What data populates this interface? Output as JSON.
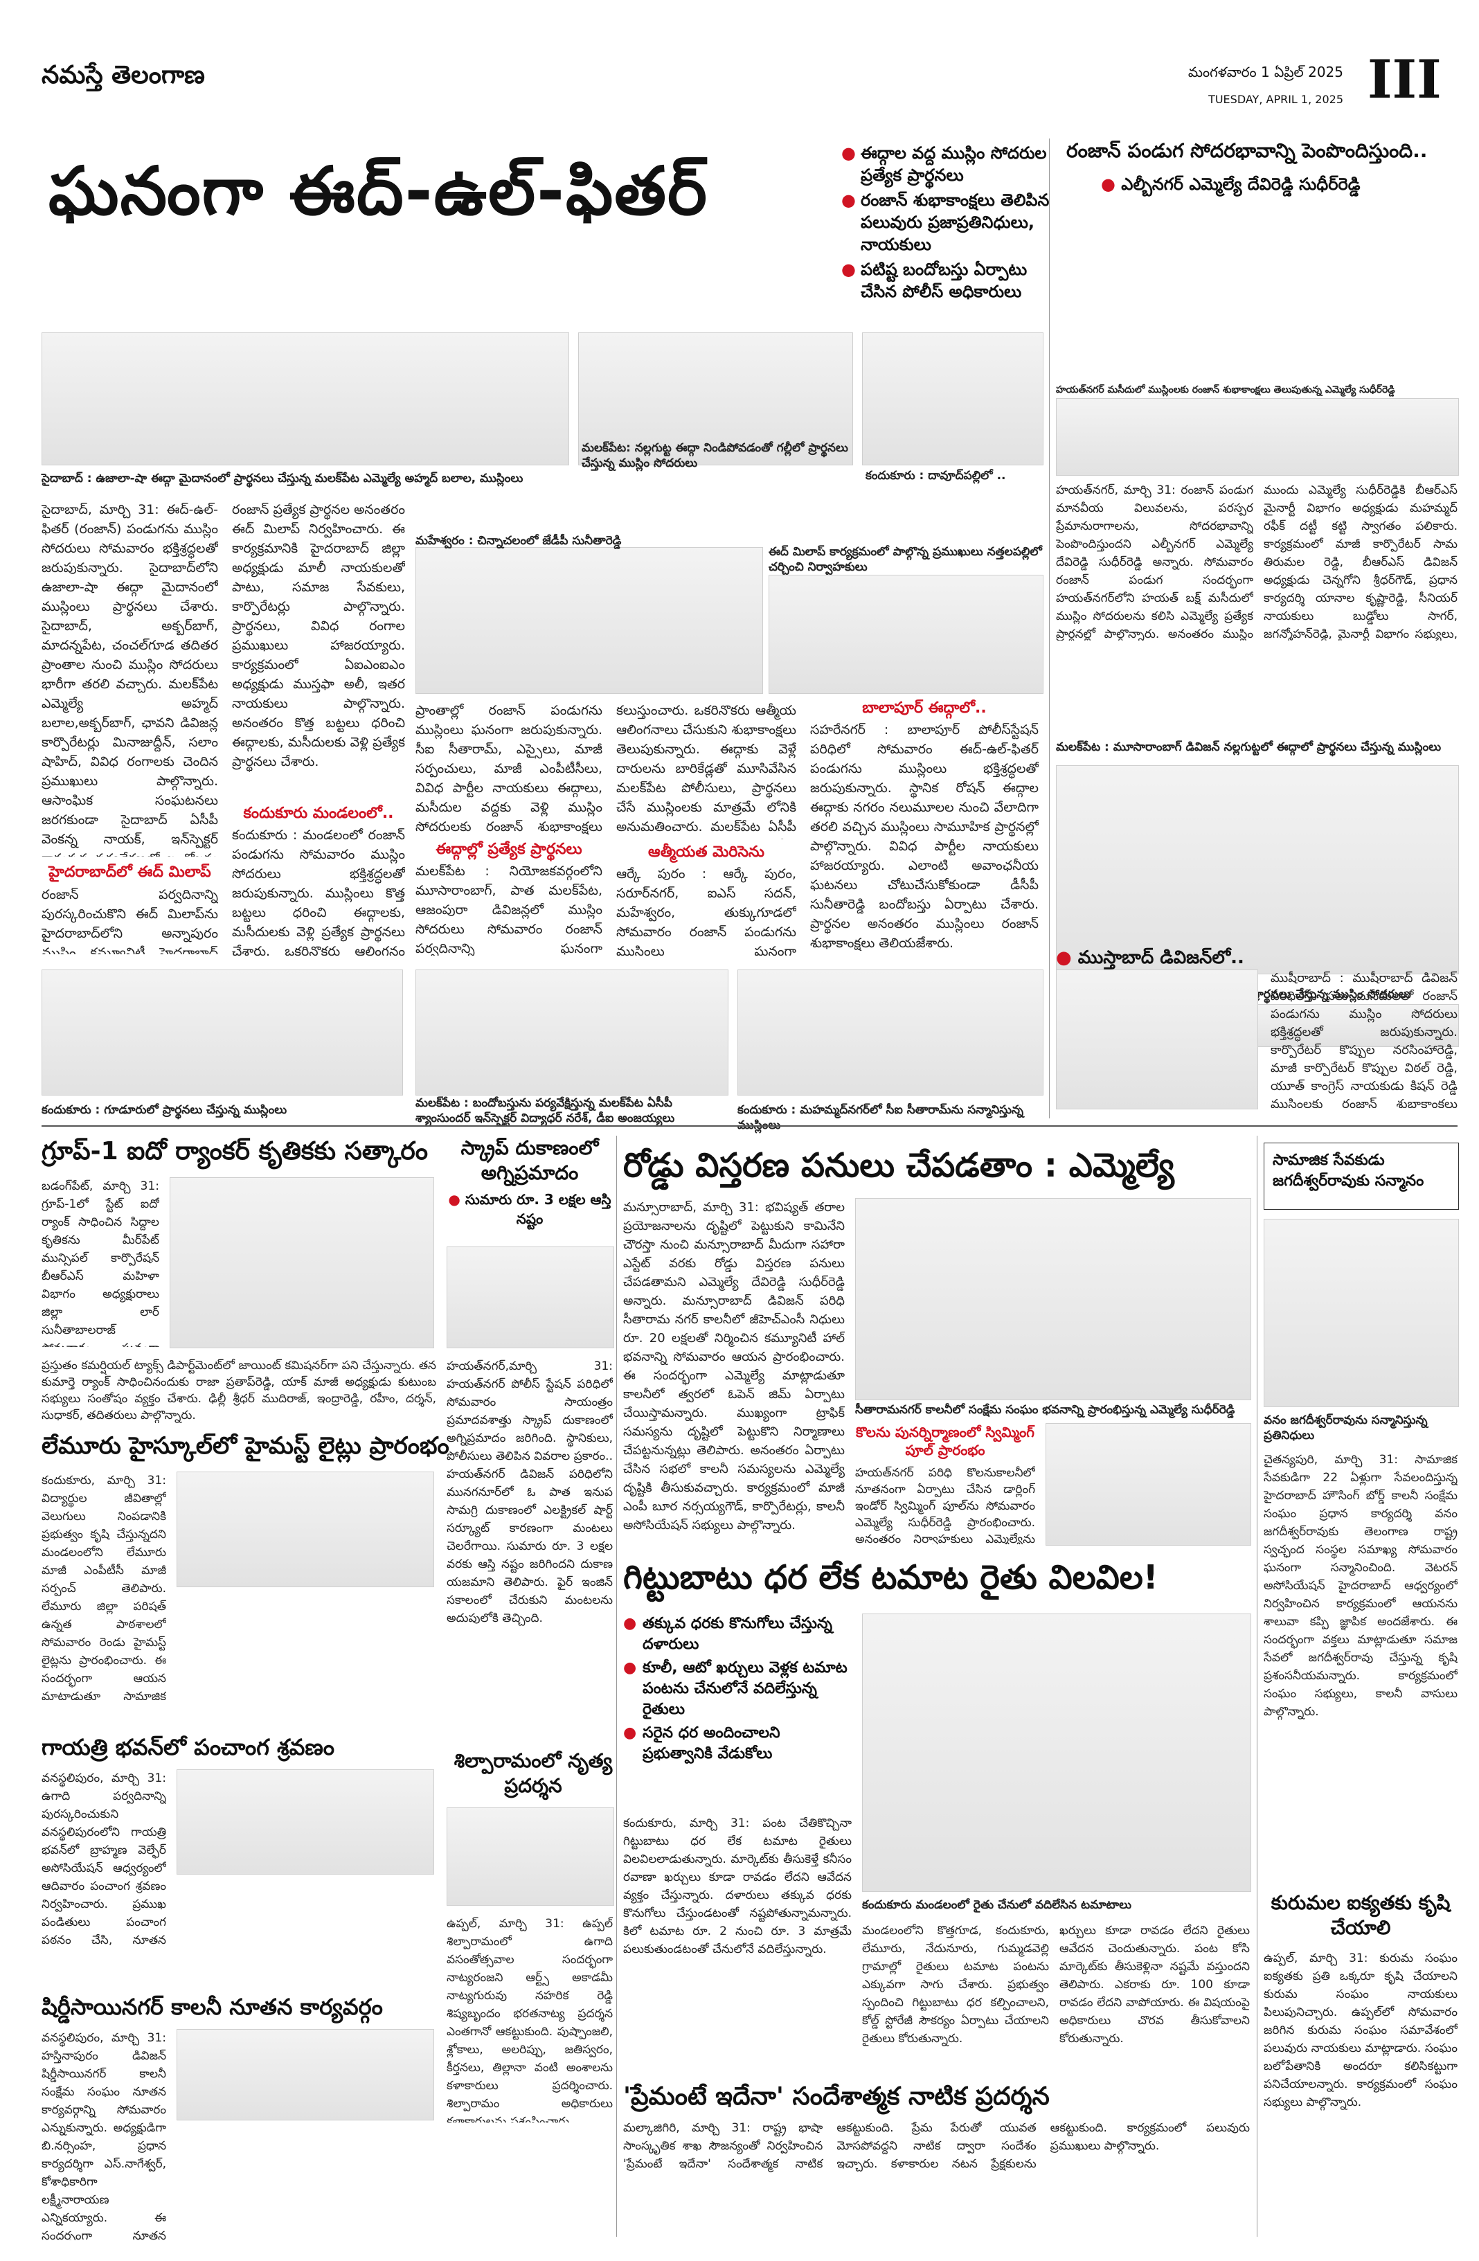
{
  "masthead": {
    "brand": "నమస్తే తెలంగాణ",
    "date_te": "మంగళవారం 1 ఏప్రిల్ 2025",
    "date_en": "TUESDAY, APRIL 1, 2025",
    "page": "III"
  },
  "lead": {
    "title": "ఘనంగా ఈద్-ఉల్-ఫితర్",
    "bullets": [
      "ఈద్గాల వద్ద ముస్లిం సోదరుల ప్రత్యేక ప్రార్థనలు",
      "రంజాన్ శుభాకాంక్షలు తెలిపిన పలువురు ప్రజాప్రతినిధులు, నాయకులు",
      "పటిష్ట బందోబస్తు ఏర్పాటు చేసిన పోలీస్ అధికారులు"
    ]
  },
  "side_story": {
    "title": "రంజాన్ పండుగ సోదరభావాన్ని పెంపొందిస్తుంది..",
    "byline": "ఎల్బీనగర్ ఎమ్మెల్యే దేవిరెడ్డి సుధీర్‌రెడ్డి",
    "photo_caption": "హయత్‌నగర్ మసీదులో ముస్లింలకు రంజాన్ శుభాకాంక్షలు తెలుపుతున్న ఎమ్మెల్యే సుధీర్‌రెడ్డి",
    "body_left": "హయత్‌నగర్, మార్చి 31: రంజాన్ పండుగ మానవీయ విలువలను, పరస్పర ప్రేమానురాగాలను, సోదరభావాన్ని పెంపొందిస్తుందని ఎల్బీనగర్ ఎమ్మెల్యే దేవిరెడ్డి సుధీర్‌రెడ్డి అన్నారు. సోమవారం రంజాన్ పండుగ సందర్భంగా హయత్‌నగర్‌లోని హయత్ బక్ష్ మసీదులో ముస్లిం సోదరులను కలిసి ఎమ్మెల్యే ప్రత్యేక ప్రార్థనల్లో పాల్గొన్నారు. అనంతరం ముస్లిం సోదరులకు రంజాన్ శుభాకాంక్షలు తెలిపారు. అంతకు",
    "body_right": "ముందు ఎమ్మెల్యే సుధీర్‌రెడ్డికి బీఆర్ఎస్ మైనార్టీ విభాగం అధ్యక్షుడు మహమ్మద్ రఫీక్ దట్టీ కట్టి స్వాగతం పలికారు. కార్యక్రమంలో మాజీ కార్పొరేటర్ సామ తిరుమల రెడ్డి, బీఆర్ఎస్ డివిజన్ అధ్యక్షుడు చెన్నగోని శ్రీధర్‌గౌడ్, ప్రధాన కార్యదర్శి యానాల కృష్ణారెడ్డి, సీనియర్ నాయకులు బుడ్డోలు సాగర్, జగన్మోహన్‌రెడ్డి, మైనార్టీ విభాగం సభ్యులు, మహమ్మద్ సలీం, ఇస్మాయిల్, జాబర్, తదితరులు పాల్గొన్నారు."
  },
  "captions": {
    "c1": "సైదాబాద్ : ఉజాలా-షా ఈద్గా మైదానంలో ప్రార్థనలు చేస్తున్న మలక్‌పేట ఎమ్మెల్యే అహ్మద్ బలాల, ముస్లింలు",
    "c2": "మలక్‌పేట: నల్లగుట్ట ఈద్గా నిండిపోవడంతో గల్లీలో ప్రార్థనలు చేస్తున్న ముస్లిం సోదరులు",
    "c3": "కందుకూరు : దావూద్‌పల్లిలో ..",
    "c4": "మహేశ్వరం : చిన్నాచలంలో జేడీపీ సునీతారెడ్డి",
    "c5": "ఈద్ మిలాప్ కార్యక్రమంలో పాల్గొన్న ప్రముఖులు నత్తలపల్లిలో చర్చించి నిర్వాహకులు",
    "c6": "మలక్‌పేట : మూసారాంబాగ్ డివిజన్ నల్లగుట్టలో ఈద్గాలో ప్రార్థనలు చేస్తున్న ముస్లింలు",
    "c7": "బాలాపూర్ : సహరేనగర్ ఈద్గా వద్ద ప్రత్యేక ప్రార్థనలు చేస్తున్న ముస్లిం సోదరులు",
    "c8": "కందుకూరు : గూడూరులో ప్రార్థనలు చేస్తున్న ముస్లింలు",
    "c9": "మలక్‌పేట : బందోబస్తును పర్యవేక్షిస్తున్న మలక్‌పేట ఏసీపీ శ్యాంసుందర్ ఇన్‌స్పెక్టర్ విద్యాధర్ నరేశ్, డీఐ అంజయ్యలు",
    "c10": "కందుకూరు : మహమ్మద్‌నగర్‌లో సీఐ సీతారామ్‌ను సన్మానిస్తున్న ముస్లింలు"
  },
  "col1": "సైదాబాద్, మార్చి 31: ఈద్-ఉల్-ఫితర్ (రంజాన్) పండుగను ముస్లిం సోదరులు సోమవారం భక్తిశ్రద్ధలతో జరుపుకున్నారు. సైదాబాద్‌లోని ఉజాలా-షా ఈద్గా మైదానంలో ముస్లింలు ప్రార్థనలు చేశారు. సైదాబాద్, అక్బర్‌బాగ్, మాదన్నపేట, చంచల్‌గూడ తదితర ప్రాంతాల నుంచి ముస్లిం సోదరులు భారీగా తరలి వచ్చారు. మలక్‌పేట ఎమ్మెల్యే అహ్మద్ బలాల,అక్బర్‌బాగ్, ఛావని డివిజన్ల కార్పొరేటర్లు మినాజుద్దీన్, సలాం షాహిద్, వివిధ రంగాలకు చెందిన ప్రముఖులు పాల్గొన్నారు. ఆసాంఘిక సంఘటనలు జరగకుండా సైదాబాద్ ఏసీపీ వెంకన్న నాయక్, ఇన్‌స్పెక్టర్ రామకృష్ణ పర్యవేక్షణలో బందోబస్తు ఏర్పాటు చేశారు. సౌత్ ఈస్ట్ జోన్ డీసీపీ కాంతిలాల్ సుభాష్ పరిశీలించారు. ప్రార్థనల అనంతరం ముస్లిం సోదరులు పరస్పరం ఈద్ ముబారక్ చెప్పుకున్నారు. మలక్‌పేట ఎమ్మెల్యే అహ్మద్ బలాలకు పోలీసు అధికారులతో పాటు, స్థానికులు రంజాన్ శుభాకాంక్షలు తెలిపారు.",
  "col1_sub": "హైదరాబాద్‌లో ఈద్ మిలాప్",
  "col1b": "రంజాన్ పర్వదినాన్ని పురస్కరించుకొని ఈద్ మిలాప్‌ను హైదరాబాద్‌లోని అన్నాపురం ముస్లిం కమ్యూనిటీ హైదరాబాద్ చార్జ్‌లో సోమవారం ఘనంగా నిర్వహించారు.",
  "col2": "రంజాన్ ప్రత్యేక ప్రార్థనల అనంతరం ఈద్ మిలాప్ నిర్వహించారు. ఈ కార్యక్రమానికి హైదరాబాద్ జిల్లా అధ్యక్షుడు మాలీ నాయకులతో పాటు, సమాజ సేవకులు, కార్పొరేటర్లు పాల్గొన్నారు. ప్రార్థనలు, వివిధ రంగాల ప్రముఖులు హాజరయ్యారు. కార్యక్రమంలో ఏఐఎంఐఎం అధ్యక్షుడు ముస్తఫా అలీ, ఇతర నాయకులు పాల్గొన్నారు. అనంతరం కొత్త బట్టలు ధరించి ఈద్గాలకు, మసీదులకు వెళ్లి ప్రత్యేక ప్రార్థనలు చేశారు.",
  "col2_sub": "కందుకూరు మండలంలో..",
  "col2b": "కందుకూరు : మండలంలో రంజాన్ పండుగను సోమవారం ముస్లిం సోదరులు భక్తిశ్రద్ధలతో జరుపుకున్నారు. ముస్లింలు కొత్త బట్టలు ధరించి ఈద్గాలకు, మసీదులకు వెళ్లి ప్రత్యేక ప్రార్థనలు చేశారు. ఒకరినొకరు ఆలింగనం చేసుకొని రంజాన్ శుభాకాంక్షలు తెలుపుకున్నారు. కందుకూరు, కొత్తగూడ మహమ్మద్‌నగర్, మల్కాపూర్, నేదునూరు, బాచుపల్లి, లేమూరు, ప్రగతినగర్, బేగంపేట్, ఆగిరేయంలో ప్రార్థనలు చేశారు.",
  "col3": "ప్రాంతాల్లో రంజాన్ పండుగను ముస్లింలు ఘనంగా జరుపుకున్నారు. సీఐ సీతారామ్, ఎస్సైలు, మాజీ సర్పంచులు, మాజీ ఎంపీటీసీలు, వివిధ పార్టీల నాయకులు ఈద్గాలు, మసీదుల వద్దకు వెళ్లి ముస్లిం సోదరులకు రంజాన్ శుభాకాంక్షలు తెలిపారు.",
  "col3_sub": "ఈద్గాల్లో ప్రత్యేక ప్రార్థనలు",
  "col3b": "మలక్‌పేట : నియోజకవర్గంలోని మూసారాంబాగ్, పాత మలక్‌పేట, ఆజంపురా డివిజన్లలో ముస్లిం సోదరులు సోమవారం రంజాన్ పర్వదినాన్ని ఘనంగా జరుపుకున్నారు. నల్లగుట్ట ఈద్గా వద్ద వేలాదిమంది ముస్లింలు ప్రత్యేక ప్రార్థనలు చేశారు. ఈద్గా నిండిపోవడంతో రోడ్లపైనే ప్రార్థనలు చేశారు. అనంతరం పరస్పరం ఆలింగనం చేసుకుని శుభాకాంక్షలు తెలుపుకున్నారు.",
  "col4": "కలుస్తుంచారు. ఒకరినొకరు ఆత్మీయ ఆలింగనాలు చేసుకుని శుభాకాంక్షలు తెలుపుకున్నారు. ఈద్గాకు వెళ్లే దారులను బారికేడ్లతో మూసివేసిన మలక్‌పేట పోలీసులు, ప్రార్థనలు చేసే ముస్లింలకు మాత్రమే లోనికి అనుమతించారు. మలక్‌పేట ఏసీపీ శ్యాంసుందర్, ఇన్‌స్పెక్టర్ నరేశ్, డీఐ అంజయ్యలు బందోబస్తును పర్యవేక్షించారు.",
  "col4_sub": "ఆత్మీయత మెరిసెను",
  "col4b": "ఆర్కే పురం : ఆర్కే పురం, సరూర్‌నగర్, ఐఎస్ సదన్, మహేశ్వరం, తుక్కుగూడలో సోమవారం రంజాన్ పండుగను ముస్లింలు ఘనంగా జరుపుకున్నారు. చిన్నాపెద్దా తేడా లేకుండా మసీదులు, ఈద్గాల వద్ద ప్రత్యేక ప్రార్థనలు నిర్వహించి ఒకరికొకరు రంజాన్ శుభాకాంక్షలు తెలుపుకున్నారు.",
  "col5_sub": "బాలాపూర్ ఈద్గాలో..",
  "col5": "సహరేనగర్ : బాలాపూర్ పోలీస్‌స్టేషన్ పరిధిలో సోమవారం ఈద్-ఉల్-ఫితర్ పండుగను ముస్లింలు భక్తిశ్రద్ధలతో జరుపుకున్నారు. స్థానిక రోషన్ ఈద్గాల ఈద్గాకు నగరం నలుమూలల నుంచి వేలాదిగా తరలి వచ్చిన ముస్లింలు సామూహిక ప్రార్థనల్లో పాల్గొన్నారు. వివిధ పార్టీల నాయకులు హాజరయ్యారు. ఎలాంటి అవాంఛనీయ ఘటనలు చోటుచేసుకోకుండా డీసీపీ సునీతారెడ్డి బందోబస్తు ఏర్పాటు చేశారు. ప్రార్థనల అనంతరం ముస్లింలు రంజాన్ శుభాకాంక్షలు తెలియజేశారు.",
  "col6_sub": "ముస్తాబాద్ డివిజన్‌లో..",
  "col6": "ముషీరాబాద్ : ముషీరాబాద్ డివిజన్ పరిధిలోని పలు మసీదులలో రంజాన్ పండుగను ముస్లిం సోదరులు భక్తిశ్రద్ధలతో జరుపుకున్నారు. కార్పొరేటర్ కొప్పుల నరసింహారెడ్డి, మాజీ కార్పొరేటర్ కొప్పుల విఠల్ రెడ్డి, యూత్ కాంగ్రెస్ నాయకుడు కిషన్ రెడ్డి ముస్లింలకు రంజాన్ శుభాకాంక్షలు తెలిపారు.",
  "stories": {
    "group1": {
      "title": "గ్రూప్-1 ఐదో ర్యాంకర్ కృతికకు సత్కారం",
      "body": "బడంగ్‌పేట్, మార్చి 31: గ్రూప్-1లో స్టేట్ ఐదో ర్యాంక్ సాధించిన సిద్దాల కృతికను మీర్‌పేట్ మున్సిపల్ కార్పొరేషన్ బీఆర్ఎస్ మహిళా విభాగం అధ్యక్షురాలు జిల్లా లార్ సునీతాబాలరాజ్ సోమవారం ఘనంగా సత్కరించారు. జిల్లెలగూడలోని నివాసానికి వెళ్లి కృతికను పుష్పగుచ్ఛం అందజేసి అభినందించారు. కాగా కృతిక బీఆర్ఎస్ మీర్‌పేట్ డివిజన్ అధ్యక్షురాలిగా, సరూర్‌నగర్ మండలం నుంచి పలుమార్లు ఎన్నికై ప్రజా సేవ చేస్తున్నారు. ఈ సందర్భంగా సునీతా బాలరాజ్ మాట్లాడుతూ కృతిక విజయం ప్రతి ఒక్కరికీ స్ఫూర్తిదాయకం అన్నారు."
    },
    "fire": {
      "title": "స్క్రాప్ దుకాణంలో అగ్నిప్రమాదం",
      "bullet": "సుమారు రూ. 3 లక్షల ఆస్తి నష్టం",
      "body": "హయత్‌నగర్,మార్చి 31: హయత్‌నగర్ పోలీస్ స్టేషన్ పరిధిలో సోమవారం సాయంత్రం ప్రమాదవశాత్తు స్క్రాప్ దుకాణంలో అగ్నిప్రమాదం జరిగింది. స్థానికులు, పోలీసులు తెలిపిన వివరాల ప్రకారం.. హయత్‌నగర్ డివిజన్ పరిధిలోని మునగనూర్‌లో ఓ పాత ఇనుప సామగ్రి దుకాణంలో ఎలక్ట్రికల్ షార్ట్ సర్క్యూట్ కారణంగా మంటలు చెలరేగాయి. సుమారు రూ. 3 లక్షల వరకు ఆస్తి నష్టం జరిగిందని దుకాణ యజమాని తెలిపారు. ఫైర్ ఇంజిన్ సకాలంలో చేరుకుని మంటలను అదుపులోకి తెచ్చింది."
    },
    "road": {
      "title": "రోడ్డు విస్తరణ పనులు చేపడతాం : ఎమ్మెల్యే",
      "body": "మన్సూరాబాద్, మార్చి 31: భవిష్యత్ తరాల ప్రయోజనాలను దృష్టిలో పెట్టుకుని కామినేని చౌరస్తా నుంచి మన్సూరాబాద్ మీదుగా సహారా ఎస్టేట్ వరకు రోడ్డు విస్తరణ పనులు చేపడతామని ఎమ్మెల్యే దేవిరెడ్డి సుధీర్‌రెడ్డి అన్నారు. మన్సూరాబాద్ డివిజన్ పరిధి సీతారామ నగర్ కాలనీలో జీహెచ్ఎంసీ నిధులు రూ. 20 లక్షలతో నిర్మించిన కమ్యూనిటీ హాల్ భవనాన్ని సోమవారం ఆయన ప్రారంభించారు. ఈ సందర్భంగా ఎమ్మెల్యే మాట్లాడుతూ కాలనీలో త్వరలో ఓపెన్ జిమ్ ఏర్పాటు చేయిస్తామన్నారు. ముఖ్యంగా ట్రాఫిక్ సమస్యను దృష్టిలో పెట్టుకొని నిర్మాణాలు చేపట్టనున్నట్లు తెలిపారు. అనంతరం ఏర్పాటు చేసిన సభలో కాలనీ సమస్యలను ఎమ్మెల్యే దృష్టికి తీసుకువచ్చారు. కార్యక్రమంలో మాజీ ఎంపీ బూర నర్సయ్యగౌడ్, కార్పొరేటర్లు, కాలనీ అసోసియేషన్ సభ్యులు పాల్గొన్నారు.",
      "photo_caption": "సీతారామనగర్ కాలనీలో సంక్షేమ సంఘం భవనాన్ని ప్రారంభిస్తున్న ఎమ్మెల్యే సుధీర్‌రెడ్డి",
      "sub": "కొలను పునర్నిర్మాణంలో స్విమ్మింగ్ పూల్ ప్రారంభం",
      "body2": "హయత్‌నగర్ పరిధి కొలనుకాలనీలో నూతనంగా ఏర్పాటు చేసిన డార్లింగ్ ఇండోర్ స్విమ్మింగ్ పూల్‌ను సోమవారం ఎమ్మెల్యే సుధీర్‌రెడ్డి ప్రారంభించారు. అనంతరం నిర్వాహకులు ఎమ్మెల్యేను ఘనంగా సన్మానించారు."
    },
    "right1": {
      "title": "సామాజిక సేవకుడు జగదీశ్వర్‌రావుకు సన్మానం",
      "photo_caption": "వనం జగదీశ్వర్‌రావును సన్మానిస్తున్న ప్రతినిధులు",
      "body": "చైతన్యపురి, మార్చి 31: సామాజిక సేవకుడిగా 22 ఏళ్లుగా సేవలందిస్తున్న హైదరాబాద్ హౌసింగ్ బోర్డ్ కాలనీ సంక్షేమ సంఘం ప్రధాన కార్యదర్శి వనం జగదీశ్వర్‌రావుకు తెలంగాణ రాష్ట్ర స్వచ్ఛంద సంస్థల సమాఖ్య సోమవారం ఘనంగా సన్మానించింది. వెటరన్ అసోసియేషన్ హైదరాబాద్ ఆధ్వర్యంలో నిర్వహించిన కార్యక్రమంలో ఆయనను శాలువా కప్పి జ్ఞాపిక అందజేశారు. ఈ సందర్భంగా వక్తలు మాట్లాడుతూ సమాజ సేవలో జగదీశ్వర్‌రావు చేస్తున్న కృషి ప్రశంసనీయమన్నారు. కార్యక్రమంలో సంఘం సభ్యులు, కాలనీ వాసులు పాల్గొన్నారు."
    },
    "lemuru": {
      "title": "లేమూరు హైస్కూల్‌లో హైమస్ట్ లైట్లు ప్రారంభం",
      "body": "కందుకూరు, మార్చి 31: విద్యార్థుల జీవితాల్లో వెలుగులు నింపడానికి ప్రభుత్వం కృషి చేస్తున్నదని మండలంలోని లేమూరు మాజీ ఎంపీటీసీ మాజీ సర్పంచ్ తెలిపారు. లేమూరు జిల్లా పరిషత్ ఉన్నత పాఠశాలలో సోమవారం రెండు హైమస్ట్ లైట్లను ప్రారంభించారు. ఈ సందర్భంగా ఆయన మాట్లాడుతూ సామాజిక సేవలో ముందుంటామని, పాఠశాల అభివృద్ధికి సహకరిస్తామని చెప్పారు. కార్యక్రమంలో గ్రామస్థులు, ఉపాధ్యాయులు పాల్గొన్నారు.",
      "body2": "ప్రస్తుతం కమర్షియల్ ట్యాక్స్ డిపార్ట్‌మెంట్‌లో జాయింట్ కమిషనర్‌గా పని చేస్తున్నారు. తన కుమార్తె ర్యాంక్ సాధించినందుకు రాజా ప్రతాప్‌రెడ్డి, యాక్ మాజీ అధ్యక్షుడు కుటుంబ సభ్యులు సంతోషం వ్యక్తం చేశారు. ఢిల్లీ శ్రీధర్ ముదిరాజ్, ఇంద్రారెడ్డి, రహీం, దర్శన్, సుధాకర్, తదితరులు పాల్గొన్నారు."
    },
    "gayatri": {
      "title": "గాయత్రి భవన్‌లో పంచాంగ శ్రవణం",
      "body": "వనస్థలిపురం, మార్చి 31: ఉగాది పర్వదినాన్ని పురస్కరించుకుని వనస్థలిపురంలోని గాయత్రి భవన్‌లో బ్రాహ్మణ వెల్ఫేర్ అసోసియేషన్ ఆధ్వర్యంలో ఆదివారం పంచాంగ శ్రవణం నిర్వహించారు. ప్రముఖ పండితులు పంచాంగ పఠనం చేసి, నూతన సంవత్సరంలో రాశి ఫలాలను వివరించారు. కార్యక్రమంలో అసోసియేషన్ అధ్యక్షుడు, ప్రధాన కార్యదర్శి, సభ్యులు, భక్తులు అధిక సంఖ్యలో పాల్గొన్నారు."
    },
    "shiridi": {
      "title": "షిర్డీసాయినగర్ కాలనీ నూతన కార్యవర్గం",
      "body": "వనస్థలిపురం, మార్చి 31: హస్తినాపురం డివిజన్ షిర్డీసాయినగర్ కాలనీ సంక్షేమ సంఘం నూతన కార్యవర్గాన్ని సోమవారం ఎన్నుకున్నారు. అధ్యక్షుడిగా బి.నర్సింహ, ప్రధాన కార్యదర్శిగా ఎస్.నాగేశ్వర్, కోశాధికారిగా లక్ష్మీనారాయణ ఎన్నికయ్యారు. ఈ సందర్భంగా నూతన కార్యవర్గ సభ్యులను కాలనీ వాసులు సన్మానించారు. కాలనీ అభివృద్ధికి కృషి చేస్తామని నూతన అధ్యక్షుడు తెలిపారు."
    },
    "dance": {
      "title": "శిల్పారామంలో నృత్య ప్రదర్శన",
      "body": "ఉప్పల్, మార్చి 31: ఉప్పల్ శిల్పారామంలో ఉగాది వసంతోత్సవాల సందర్భంగా నాట్యరంజని ఆర్ట్స్ అకాడమీ నాట్యగురువు నహరిక రెడ్డి శిష్యబృందం భరతనాట్య ప్రదర్శన ఎంతగానో ఆకట్టుకుంది. పుష్పాంజలి, శ్లోకాలు, అలరిప్పు, జతిస్వరం, కీర్తనలు, తిల్లానా వంటి అంశాలను కళాకారులు ప్రదర్శించారు. శిల్పారామం అధికారులు కళాకారులను ప్రశంసించారు."
    },
    "tomato": {
      "title": "గిట్టుబాటు ధర లేక టమాట రైతు విలవిల!",
      "bullets": [
        "తక్కువ ధరకు కొనుగోలు చేస్తున్న దళారులు",
        "కూలీ, ఆటో ఖర్చులు వెళ్లక టమాట పంటను చేనులోనే వదిలేస్తున్న రైతులు",
        "సరైన ధర అందించాలని ప్రభుత్వానికి వేడుకోలు"
      ],
      "photo_caption": "కందుకూరు మండలంలో రైతు చేనులో వదిలేసిన టమాటాలు",
      "body": "కందుకూరు, మార్చి 31: పంట చేతికొచ్చినా గిట్టుబాటు ధర లేక టమాట రైతులు విలవిలలాడుతున్నారు. మార్కెట్‌కు తీసుకెళ్తే కనీసం రవాణా ఖర్చులు కూడా రావడం లేదని ఆవేదన వ్యక్తం చేస్తున్నారు. దళారులు తక్కువ ధరకు కొనుగోలు చేస్తుండటంతో నష్టపోతున్నామన్నారు. కిలో టమాట రూ. 2 నుంచి రూ. 3 మాత్రమే పలుకుతుండటంతో చేనులోనే వదిలేస్తున్నారు.",
      "body2": "మండలంలోని కొత్తగూడ, కందుకూరు, లేమూరు, నేదునూరు, గుమ్మడవెల్లి గ్రామాల్లో రైతులు టమాట పంటను ఎక్కువగా సాగు చేశారు. ప్రభుత్వం స్పందించి గిట్టుబాటు ధర కల్పించాలని, కోల్డ్ స్టోరేజీ సౌకర్యం ఏర్పాటు చేయాలని రైతులు కోరుతున్నారు.",
      "body3": "ఖర్చులు కూడా రావడం లేదని రైతులు ఆవేదన చెందుతున్నారు. పంట కోసి మార్కెట్‌కు తీసుకెళ్లినా నష్టమే వస్తుందని తెలిపారు. ఎకరాకు రూ. 100 కూడా రావడం లేదని వాపోయారు. ఈ విషయంపై అధికారులు చొరవ తీసుకోవాలని కోరుతున్నారు."
    },
    "kuruma": {
      "title": "కురుమల ఐక్యతకు కృషి చేయాలి",
      "body": "ఉప్పల్, మార్చి 31: కురుమ సంఘం ఐక్యతకు ప్రతి ఒక్కరూ కృషి చేయాలని కురుమ సంఘం నాయకులు పిలుపునిచ్చారు. ఉప్పల్‌లో సోమవారం జరిగిన కురుమ సంఘం సమావేశంలో పలువురు నాయకులు మాట్లాడారు. సంఘం బలోపేతానికి అందరూ కలిసికట్టుగా పనిచేయాలన్నారు. కార్యక్రమంలో సంఘం సభ్యులు పాల్గొన్నారు."
    },
    "drama": {
      "title": "'ప్రేమంటే ఇదేనా' సందేశాత్మక నాటిక ప్రదర్శన",
      "body": "మల్కాజిగిరి, మార్చి 31: రాష్ట్ర భాషా సాంస్కృతిక శాఖ సౌజన్యంతో నిర్వహించిన 'ప్రేమంటే ఇదేనా' సందేశాత్మక నాటిక ఆకట్టుకుంది. ప్రేమ పేరుతో యువత మోసపోవద్దని నాటిక ద్వారా సందేశం ఇచ్చారు. కళాకారుల నటన ప్రేక్షకులను ఆకట్టుకుంది. కార్యక్రమంలో పలువురు ప్రముఖులు పాల్గొన్నారు."
    }
  }
}
